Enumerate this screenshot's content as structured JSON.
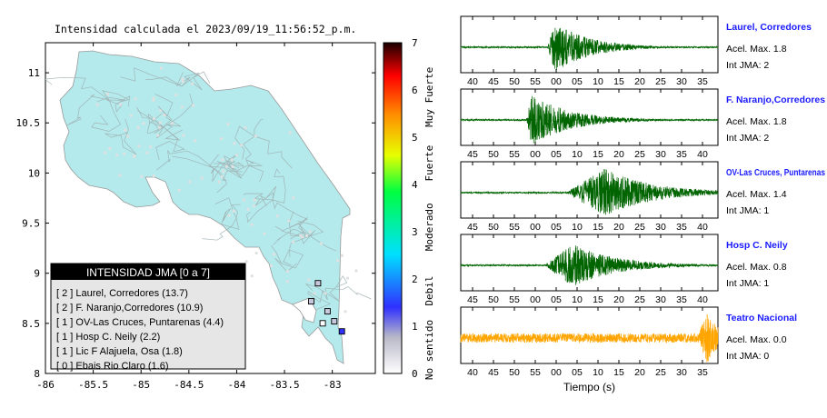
{
  "map": {
    "title": "Intensidad calculada el 2023/09/19_11:56:52_p.m.",
    "lon_ticks": [
      "-86",
      "-85.5",
      "-85",
      "-84.5",
      "-84",
      "-83.5",
      "-83"
    ],
    "lat_ticks": [
      "11",
      "10.5",
      "10",
      "9.5",
      "9",
      "8.5",
      "8"
    ],
    "legend_title": "INTENSIDAD JMA [0 a 7]",
    "legend_items": [
      "[ 2 ]  Laurel, Corredores (13.7)",
      "[ 2 ]  F. Naranjo,Corredores (10.9)",
      "[ 1 ]  OV-Las Cruces, Puntarenas (4.4)",
      "[ 1 ]  Hosp C. Neily (2.2)",
      "[ 1 ]  Lic F Alajuela, Osa (1.8)",
      "[ 0 ]  Ebais Rio Claro (1.6)"
    ],
    "land_color": "#b4eaec",
    "ocean_color": "#ffffff",
    "stations": [
      {
        "lon": -82.9,
        "lat": 8.42,
        "intensity": 2
      },
      {
        "lon": -83.15,
        "lat": 8.9,
        "intensity": 1
      },
      {
        "lon": -83.22,
        "lat": 8.72,
        "intensity": 1
      },
      {
        "lon": -83.05,
        "lat": 8.62,
        "intensity": 1
      },
      {
        "lon": -82.98,
        "lat": 8.52,
        "intensity": 1
      },
      {
        "lon": -83.1,
        "lat": 8.5,
        "intensity": 0
      }
    ]
  },
  "colorbar": {
    "ticks": [
      "0",
      "1",
      "2",
      "3",
      "4",
      "5",
      "6",
      "7"
    ],
    "labels": [
      "No sentido",
      "Debil",
      "Moderado",
      "Fuerte",
      "Muy Fuerte"
    ]
  },
  "chart_data": [
    {
      "type": "line",
      "name": "Laurel, Corredores",
      "accel_label": "Acel. Max. 1.8",
      "jma_label": "Int JMA: 2",
      "color": "#006400",
      "x_ticks": [
        "40",
        "45",
        "50",
        "55",
        "00",
        "05",
        "10",
        "15",
        "20",
        "25",
        "30",
        "35"
      ],
      "xlim": [
        0,
        12
      ],
      "onset": 4.05,
      "peak": 1.0,
      "peak_at": 4.4,
      "decay": 1.6,
      "noise": 0.03
    },
    {
      "type": "line",
      "name": "F. Naranjo,Corredores",
      "accel_label": "Acel. Max. 1.8",
      "jma_label": "Int JMA: 2",
      "color": "#006400",
      "x_ticks": [
        "45",
        "50",
        "55",
        "00",
        "05",
        "10",
        "15",
        "20",
        "25",
        "30",
        "35",
        "40"
      ],
      "xlim": [
        0,
        12
      ],
      "onset": 3.05,
      "peak": 1.0,
      "peak_at": 3.3,
      "decay": 1.8,
      "noise": 0.03
    },
    {
      "type": "line",
      "name": "OV-Las Cruces, Puntarenas",
      "accel_label": "Acel. Max. 1.4",
      "jma_label": "Int JMA: 1",
      "color": "#006400",
      "x_ticks": [
        "45",
        "50",
        "55",
        "00",
        "05",
        "10",
        "15",
        "20",
        "25",
        "30",
        "35",
        "40"
      ],
      "xlim": [
        0,
        12
      ],
      "onset": 4.9,
      "peak": 0.95,
      "peak_at": 6.7,
      "decay": 2.2,
      "noise": 0.03
    },
    {
      "type": "line",
      "name": "Hosp C. Neily",
      "accel_label": "Acel. Max. 0.8",
      "jma_label": "Int JMA: 1",
      "color": "#006400",
      "x_ticks": [
        "45",
        "50",
        "55",
        "00",
        "05",
        "10",
        "15",
        "20",
        "25",
        "30",
        "35",
        "40"
      ],
      "xlim": [
        0,
        12
      ],
      "onset": 3.9,
      "peak": 0.85,
      "peak_at": 5.2,
      "decay": 2.0,
      "noise": 0.03
    },
    {
      "type": "line",
      "name": "Teatro Nacional",
      "accel_label": "Acel. Max. 0.0",
      "jma_label": "Int JMA: 0",
      "color": "#ffa500",
      "x_ticks": [
        "40",
        "45",
        "50",
        "55",
        "00",
        "05",
        "10",
        "15",
        "20",
        "25",
        "30",
        "35"
      ],
      "xlim": [
        0,
        12
      ],
      "onset": 11.0,
      "peak": 1.0,
      "peak_at": 11.5,
      "decay": 0.6,
      "noise": 0.18,
      "xlabel": "Tiempo (s)"
    }
  ]
}
